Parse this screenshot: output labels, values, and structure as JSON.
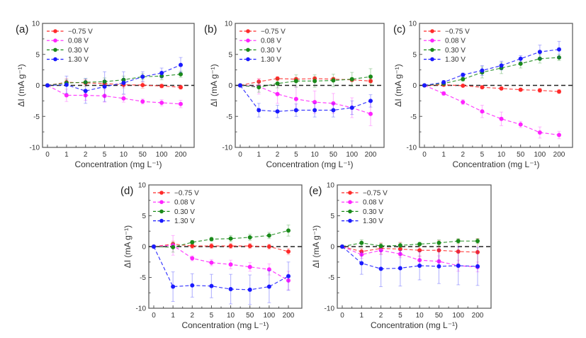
{
  "figure": {
    "series_styles": [
      {
        "name": "−0.75 V",
        "color": "#ff2a2a"
      },
      {
        "name": "0.08 V",
        "color": "#ff22ff"
      },
      {
        "name": "0.30 V",
        "color": "#1a8a1a"
      },
      {
        "name": "1.30 V",
        "color": "#1a1aff"
      }
    ],
    "zero_line_color": "#222222"
  },
  "chart_data": [
    {
      "panel": "(a)",
      "type": "line",
      "xlabel": "Concentration (mg L⁻¹)",
      "ylabel": "ΔI (mA g⁻¹)",
      "categories": [
        "0",
        "1",
        "2",
        "5",
        "10",
        "50",
        "100",
        "200"
      ],
      "ylim": [
        -10,
        10
      ],
      "yticks": [
        -10,
        -5,
        0,
        5,
        10
      ],
      "legend": "top-left",
      "series": [
        {
          "name": "−0.75 V",
          "values": [
            0,
            0.5,
            0.4,
            0.3,
            0.1,
            0.05,
            -0.1,
            -0.3
          ],
          "errors": [
            0,
            0.6,
            0.5,
            0.5,
            0.5,
            0.5,
            0.3,
            0.3
          ]
        },
        {
          "name": "0.08 V",
          "values": [
            0,
            -1.6,
            -1.6,
            -1.7,
            -2.1,
            -2.6,
            -2.8,
            -3.0
          ],
          "errors": [
            0,
            1.0,
            0.8,
            1.0,
            0.6,
            0.4,
            0.5,
            0.6
          ]
        },
        {
          "name": "0.30 V",
          "values": [
            0,
            0.4,
            0.5,
            0.6,
            0.9,
            1.4,
            1.5,
            1.8
          ],
          "errors": [
            0,
            0.5,
            0.6,
            0.6,
            0.6,
            0.5,
            0.6,
            0.5
          ]
        },
        {
          "name": "1.30 V",
          "values": [
            0,
            0.1,
            -0.9,
            -0.2,
            0.4,
            1.4,
            2.0,
            3.3
          ],
          "errors": [
            0,
            1.4,
            2.0,
            2.4,
            1.8,
            0.8,
            0.8,
            1.2
          ]
        }
      ]
    },
    {
      "panel": "(b)",
      "type": "line",
      "xlabel": "Concentration (mg L⁻¹)",
      "ylabel": "ΔI (mA g⁻¹)",
      "categories": [
        "0",
        "1",
        "2",
        "5",
        "10",
        "50",
        "100",
        "200"
      ],
      "ylim": [
        -10,
        10
      ],
      "yticks": [
        -10,
        -5,
        0,
        5,
        10
      ],
      "legend": "top-left",
      "series": [
        {
          "name": "−0.75 V",
          "values": [
            0,
            0.6,
            1.1,
            1.0,
            1.1,
            1.0,
            0.9,
            0.7
          ],
          "errors": [
            0,
            0.5,
            0.3,
            0.3,
            0.3,
            0.3,
            0.3,
            0.3
          ]
        },
        {
          "name": "0.08 V",
          "values": [
            0,
            -0.2,
            -1.4,
            -2.2,
            -2.7,
            -2.9,
            -3.6,
            -4.6
          ],
          "errors": [
            0,
            1.2,
            1.5,
            2.0,
            1.8,
            1.6,
            1.6,
            1.9
          ]
        },
        {
          "name": "0.30 V",
          "values": [
            0,
            -0.3,
            0.3,
            0.7,
            0.7,
            0.8,
            1.0,
            1.4
          ],
          "errors": [
            0,
            0.8,
            0.7,
            1.0,
            1.0,
            1.0,
            1.1,
            1.3
          ]
        },
        {
          "name": "1.30 V",
          "values": [
            0,
            -4.0,
            -4.2,
            -4.0,
            -4.0,
            -4.0,
            -3.6,
            -2.5
          ],
          "errors": [
            0,
            1.1,
            1.0,
            1.0,
            1.1,
            1.1,
            1.1,
            1.0
          ]
        }
      ]
    },
    {
      "panel": "(c)",
      "type": "line",
      "xlabel": "Concentration (mg L⁻¹)",
      "ylabel": "ΔI (mA g⁻¹)",
      "categories": [
        "0",
        "1",
        "2",
        "5",
        "10",
        "50",
        "100",
        "200"
      ],
      "ylim": [
        -10,
        10
      ],
      "yticks": [
        -10,
        -5,
        0,
        5,
        10
      ],
      "legend": "top-left",
      "series": [
        {
          "name": "−0.75 V",
          "values": [
            0,
            0.1,
            -0.05,
            -0.3,
            -0.5,
            -0.7,
            -0.8,
            -1.0
          ],
          "errors": [
            0,
            0.2,
            0.2,
            0.2,
            0.2,
            0.2,
            0.3,
            0.3
          ]
        },
        {
          "name": "0.08 V",
          "values": [
            0,
            -1.3,
            -2.7,
            -4.2,
            -5.4,
            -6.3,
            -7.6,
            -8.0
          ],
          "errors": [
            0,
            0.3,
            0.4,
            1.0,
            1.1,
            0.5,
            0.9,
            0.6
          ]
        },
        {
          "name": "0.30 V",
          "values": [
            0,
            0.3,
            1.0,
            2.1,
            2.8,
            3.5,
            4.3,
            4.5
          ],
          "errors": [
            0,
            0.3,
            0.3,
            0.9,
            0.9,
            0.7,
            0.7,
            0.5
          ]
        },
        {
          "name": "1.30 V",
          "values": [
            0,
            0.5,
            1.7,
            2.4,
            3.2,
            4.3,
            5.4,
            5.8
          ],
          "errors": [
            0,
            0.3,
            0.3,
            0.8,
            0.7,
            0.5,
            1.1,
            1.3
          ]
        }
      ]
    },
    {
      "panel": "(d)",
      "type": "line",
      "xlabel": "Concentration (mg L⁻¹)",
      "ylabel": "ΔI (mA g⁻¹)",
      "categories": [
        "0",
        "1",
        "2",
        "5",
        "10",
        "50",
        "100",
        "200"
      ],
      "ylim": [
        -10,
        10
      ],
      "yticks": [
        -10,
        -5,
        0,
        5,
        10
      ],
      "legend": "top-left",
      "series": [
        {
          "name": "−0.75 V",
          "values": [
            0,
            0.4,
            0.1,
            0.1,
            0.1,
            0.1,
            0.0,
            -0.8
          ],
          "errors": [
            0,
            0.5,
            0.4,
            0.4,
            0.4,
            0.4,
            0.4,
            0.5
          ]
        },
        {
          "name": "0.08 V",
          "values": [
            0,
            0.2,
            -1.9,
            -2.6,
            -2.9,
            -3.3,
            -3.7,
            -5.5
          ],
          "errors": [
            0,
            1.6,
            0.4,
            0.5,
            0.7,
            0.7,
            0.9,
            1.5
          ]
        },
        {
          "name": "0.30 V",
          "values": [
            0,
            -0.1,
            0.7,
            1.2,
            1.3,
            1.5,
            1.8,
            2.6
          ],
          "errors": [
            0,
            0.8,
            0.3,
            0.3,
            0.5,
            0.5,
            0.5,
            0.9
          ]
        },
        {
          "name": "1.30 V",
          "values": [
            0,
            -6.5,
            -6.3,
            -6.4,
            -6.9,
            -7.0,
            -6.5,
            -4.8
          ],
          "errors": [
            0,
            2.4,
            1.9,
            1.9,
            2.4,
            2.4,
            2.6,
            2.3
          ]
        }
      ]
    },
    {
      "panel": "(e)",
      "type": "line",
      "xlabel": "Concentration (mg L⁻¹)",
      "ylabel": "ΔI (mA g⁻¹)",
      "categories": [
        "0",
        "1",
        "2",
        "5",
        "10",
        "50",
        "100",
        "200"
      ],
      "ylim": [
        -10,
        10
      ],
      "yticks": [
        -10,
        -5,
        0,
        5,
        10
      ],
      "legend": "top-left",
      "series": [
        {
          "name": "−0.75 V",
          "values": [
            0,
            -0.8,
            -0.3,
            -0.4,
            -0.6,
            -0.6,
            -0.8,
            -0.9
          ],
          "errors": [
            0,
            0.5,
            0.9,
            1.1,
            1.0,
            1.6,
            2.0,
            2.2
          ]
        },
        {
          "name": "0.08 V",
          "values": [
            0,
            -1.3,
            -0.6,
            -1.2,
            -2.2,
            -2.4,
            -3.1,
            -3.3
          ],
          "errors": [
            0,
            0.6,
            0.7,
            0.6,
            0.7,
            0.9,
            0.9,
            0.8
          ]
        },
        {
          "name": "0.30 V",
          "values": [
            0,
            0.6,
            0.1,
            0.2,
            0.4,
            0.6,
            0.9,
            0.9
          ],
          "errors": [
            0,
            0.5,
            0.4,
            0.4,
            0.3,
            0.5,
            0.4,
            0.4
          ]
        },
        {
          "name": "1.30 V",
          "values": [
            0,
            -2.7,
            -3.6,
            -3.5,
            -3.1,
            -3.2,
            -3.1,
            -3.2
          ],
          "errors": [
            0,
            1.8,
            2.9,
            2.9,
            2.3,
            2.8,
            3.1,
            3.1
          ]
        }
      ]
    }
  ]
}
